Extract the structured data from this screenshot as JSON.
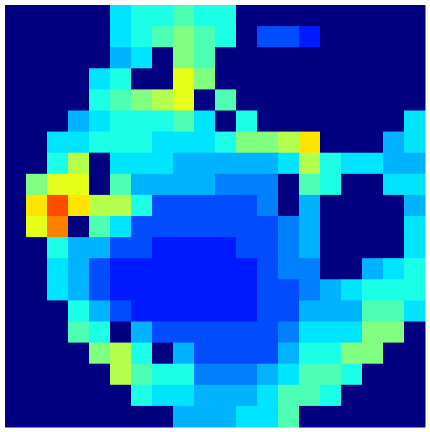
{
  "chart_data": {
    "type": "heatmap",
    "colormap": "jet",
    "vlim": [
      0,
      1
    ],
    "values": [
      [
        0,
        0,
        0,
        0,
        0,
        0.35,
        0.4,
        0.4,
        0.45,
        0.4,
        0.4,
        0,
        0,
        0,
        0,
        0,
        0,
        0,
        0,
        0
      ],
      [
        0,
        0,
        0,
        0,
        0,
        0.35,
        0.4,
        0.45,
        0.5,
        0.45,
        0.4,
        0,
        0.2,
        0.2,
        0.15,
        0,
        0,
        0,
        0,
        0
      ],
      [
        0,
        0,
        0,
        0,
        0,
        0.3,
        0.35,
        0,
        0.5,
        0.45,
        0,
        0,
        0,
        0,
        0,
        0,
        0,
        0,
        0,
        0
      ],
      [
        0,
        0,
        0,
        0,
        0.35,
        0.4,
        0,
        0,
        0.6,
        0.5,
        0,
        0,
        0,
        0,
        0,
        0,
        0,
        0,
        0,
        0
      ],
      [
        0,
        0,
        0,
        0,
        0.4,
        0.45,
        0.5,
        0.55,
        0.6,
        0,
        0.45,
        0,
        0,
        0,
        0,
        0,
        0,
        0,
        0,
        0
      ],
      [
        0,
        0,
        0,
        0.3,
        0.35,
        0.4,
        0.4,
        0.4,
        0.45,
        0.35,
        0,
        0.4,
        0,
        0,
        0,
        0,
        0,
        0,
        0,
        0.35
      ],
      [
        0,
        0,
        0.35,
        0.35,
        0.4,
        0.4,
        0.4,
        0.35,
        0.35,
        0.35,
        0.4,
        0.5,
        0.5,
        0.55,
        0.65,
        0,
        0,
        0,
        0.3,
        0.35
      ],
      [
        0,
        0,
        0.4,
        0.55,
        0,
        0.35,
        0.35,
        0.35,
        0.3,
        0.3,
        0.3,
        0.3,
        0.3,
        0.35,
        0.55,
        0.4,
        0.35,
        0.35,
        0.3,
        0.3
      ],
      [
        0,
        0.5,
        0.6,
        0.6,
        0,
        0.45,
        0.3,
        0.3,
        0.3,
        0.3,
        0.25,
        0.25,
        0.25,
        0,
        0.45,
        0.4,
        0,
        0,
        0.35,
        0.35
      ],
      [
        0,
        0.65,
        0.8,
        0.65,
        0.55,
        0.55,
        0.4,
        0.2,
        0.2,
        0.2,
        0.2,
        0.2,
        0.25,
        0,
        0.3,
        0,
        0,
        0,
        0,
        0.3
      ],
      [
        0,
        0.6,
        0.75,
        0,
        0.45,
        0.35,
        0.2,
        0.2,
        0.2,
        0.2,
        0.2,
        0.2,
        0.2,
        0.25,
        0.3,
        0,
        0,
        0,
        0,
        0.35
      ],
      [
        0,
        0,
        0.4,
        0.3,
        0.3,
        0.2,
        0.2,
        0.15,
        0.15,
        0.15,
        0.15,
        0.2,
        0.2,
        0.25,
        0.3,
        0,
        0,
        0,
        0,
        0.35
      ],
      [
        0,
        0,
        0.35,
        0.3,
        0.2,
        0.15,
        0.15,
        0.15,
        0.15,
        0.15,
        0.15,
        0.15,
        0.2,
        0.25,
        0.25,
        0,
        0,
        0.3,
        0.35,
        0.4
      ],
      [
        0,
        0,
        0.35,
        0.3,
        0.2,
        0.15,
        0.15,
        0.15,
        0.15,
        0.15,
        0.15,
        0.15,
        0.2,
        0.2,
        0.25,
        0.3,
        0.35,
        0.4,
        0.4,
        0.4
      ],
      [
        0,
        0,
        0,
        0.4,
        0.3,
        0.2,
        0.15,
        0.15,
        0.15,
        0.15,
        0.15,
        0.15,
        0.2,
        0.2,
        0.3,
        0.3,
        0.3,
        0.45,
        0.45,
        0.35
      ],
      [
        0,
        0,
        0,
        0.45,
        0.4,
        0,
        0.3,
        0.2,
        0.2,
        0.2,
        0.2,
        0.2,
        0.2,
        0.25,
        0.35,
        0.35,
        0.35,
        0.5,
        0.5,
        0
      ],
      [
        0,
        0,
        0,
        0,
        0.5,
        0.55,
        0.4,
        0,
        0.3,
        0.2,
        0.2,
        0.2,
        0.2,
        0.3,
        0.4,
        0.4,
        0.5,
        0.5,
        0,
        0
      ],
      [
        0,
        0,
        0,
        0,
        0,
        0.55,
        0.45,
        0.4,
        0.4,
        0.25,
        0.25,
        0.25,
        0.3,
        0.35,
        0.45,
        0.45,
        0.4,
        0,
        0,
        0
      ],
      [
        0,
        0,
        0,
        0,
        0,
        0,
        0.4,
        0.35,
        0.35,
        0.3,
        0.3,
        0.3,
        0.35,
        0.45,
        0.45,
        0.4,
        0,
        0,
        0,
        0
      ],
      [
        0,
        0,
        0,
        0,
        0,
        0,
        0,
        0,
        0.3,
        0.3,
        0.3,
        0.35,
        0.35,
        0.45,
        0,
        0,
        0,
        0,
        0,
        0
      ]
    ]
  }
}
